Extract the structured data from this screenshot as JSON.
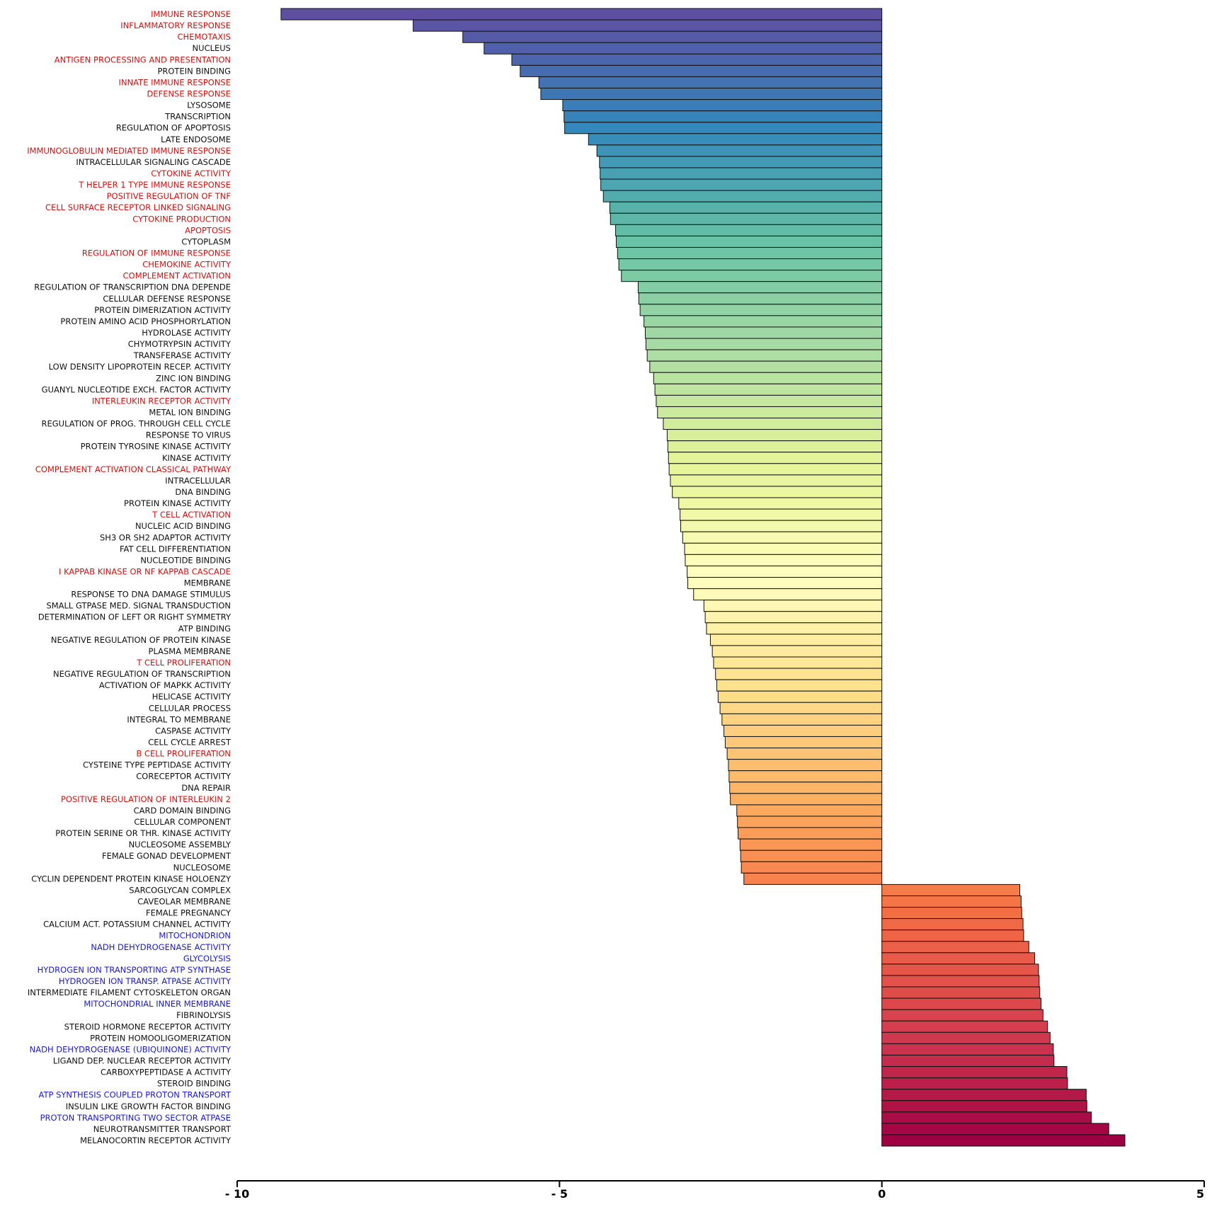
{
  "chart_data": {
    "type": "bar",
    "orientation": "horizontal",
    "title": "",
    "xlabel": "",
    "ylabel": "",
    "xlim": [
      -10,
      5
    ],
    "xticks": [
      {
        "value": -10,
        "label": "- 10"
      },
      {
        "value": -5,
        "label": "- 5"
      },
      {
        "value": 0,
        "label": "0"
      },
      {
        "value": 5,
        "label": "5"
      }
    ],
    "grid": false,
    "legend": "none",
    "label_colors": {
      "default": "#111111",
      "immune": "#cc1111",
      "energy": "#1a1acc"
    },
    "categories": [
      {
        "label": "IMMUNE RESPONSE",
        "value": -9.32,
        "group": "immune"
      },
      {
        "label": "INFLAMMATORY RESPONSE",
        "value": -7.27,
        "group": "immune"
      },
      {
        "label": "CHEMOTAXIS",
        "value": -6.5,
        "group": "immune"
      },
      {
        "label": "NUCLEUS",
        "value": -6.17,
        "group": "default"
      },
      {
        "label": "ANTIGEN PROCESSING AND PRESENTATION",
        "value": -5.74,
        "group": "immune"
      },
      {
        "label": "PROTEIN BINDING",
        "value": -5.61,
        "group": "default"
      },
      {
        "label": "INNATE IMMUNE RESPONSE",
        "value": -5.32,
        "group": "immune"
      },
      {
        "label": "DEFENSE RESPONSE",
        "value": -5.29,
        "group": "immune"
      },
      {
        "label": "LYSOSOME",
        "value": -4.95,
        "group": "default"
      },
      {
        "label": "TRANSCRIPTION",
        "value": -4.93,
        "group": "default"
      },
      {
        "label": "REGULATION OF APOPTOSIS",
        "value": -4.92,
        "group": "default"
      },
      {
        "label": "LATE ENDOSOME",
        "value": -4.55,
        "group": "default"
      },
      {
        "label": "IMMUNOGLOBULIN MEDIATED IMMUNE RESPONSE",
        "value": -4.42,
        "group": "immune"
      },
      {
        "label": "INTRACELLULAR SIGNALING CASCADE",
        "value": -4.38,
        "group": "default"
      },
      {
        "label": "CYTOKINE ACTIVITY",
        "value": -4.37,
        "group": "immune"
      },
      {
        "label": "T HELPER 1 TYPE IMMUNE RESPONSE",
        "value": -4.36,
        "group": "immune"
      },
      {
        "label": "POSITIVE REGULATION OF TNF",
        "value": -4.32,
        "group": "immune"
      },
      {
        "label": "CELL SURFACE RECEPTOR LINKED SIGNALING",
        "value": -4.22,
        "group": "immune"
      },
      {
        "label": "CYTOKINE PRODUCTION",
        "value": -4.21,
        "group": "immune"
      },
      {
        "label": "APOPTOSIS",
        "value": -4.13,
        "group": "immune"
      },
      {
        "label": "CYTOPLASM",
        "value": -4.12,
        "group": "default"
      },
      {
        "label": "REGULATION OF IMMUNE RESPONSE",
        "value": -4.1,
        "group": "immune"
      },
      {
        "label": "CHEMOKINE ACTIVITY",
        "value": -4.08,
        "group": "immune"
      },
      {
        "label": "COMPLEMENT ACTIVATION",
        "value": -4.04,
        "group": "immune"
      },
      {
        "label": "REGULATION OF TRANSCRIPTION DNA DEPENDE",
        "value": -3.78,
        "group": "default"
      },
      {
        "label": "CELLULAR DEFENSE RESPONSE",
        "value": -3.77,
        "group": "default"
      },
      {
        "label": "PROTEIN DIMERIZATION ACTIVITY",
        "value": -3.75,
        "group": "default"
      },
      {
        "label": "PROTEIN AMINO ACID PHOSPHORYLATION",
        "value": -3.69,
        "group": "default"
      },
      {
        "label": "HYDROLASE ACTIVITY",
        "value": -3.67,
        "group": "default"
      },
      {
        "label": "CHYMOTRYPSIN ACTIVITY",
        "value": -3.66,
        "group": "default"
      },
      {
        "label": "TRANSFERASE ACTIVITY",
        "value": -3.64,
        "group": "default"
      },
      {
        "label": "LOW DENSITY LIPOPROTEIN RECEP. ACTIVITY",
        "value": -3.6,
        "group": "default"
      },
      {
        "label": "ZINC ION BINDING",
        "value": -3.54,
        "group": "default"
      },
      {
        "label": "GUANYL NUCLEOTIDE EXCH. FACTOR ACTIVITY",
        "value": -3.52,
        "group": "default"
      },
      {
        "label": "INTERLEUKIN RECEPTOR ACTIVITY",
        "value": -3.5,
        "group": "immune"
      },
      {
        "label": "METAL ION BINDING",
        "value": -3.48,
        "group": "default"
      },
      {
        "label": "REGULATION OF PROG. THROUGH CELL CYCLE",
        "value": -3.39,
        "group": "default"
      },
      {
        "label": "RESPONSE TO VIRUS",
        "value": -3.33,
        "group": "default"
      },
      {
        "label": "PROTEIN TYROSINE KINASE ACTIVITY",
        "value": -3.32,
        "group": "default"
      },
      {
        "label": "KINASE ACTIVITY",
        "value": -3.31,
        "group": "default"
      },
      {
        "label": "COMPLEMENT ACTIVATION CLASSICAL PATHWAY",
        "value": -3.3,
        "group": "immune"
      },
      {
        "label": "INTRACELLULAR",
        "value": -3.28,
        "group": "default"
      },
      {
        "label": "DNA BINDING",
        "value": -3.25,
        "group": "default"
      },
      {
        "label": "PROTEIN KINASE ACTIVITY",
        "value": -3.15,
        "group": "default"
      },
      {
        "label": "T CELL ACTIVATION",
        "value": -3.13,
        "group": "immune"
      },
      {
        "label": "NUCLEIC ACID BINDING",
        "value": -3.12,
        "group": "default"
      },
      {
        "label": "SH3 OR SH2 ADAPTOR ACTIVITY",
        "value": -3.09,
        "group": "default"
      },
      {
        "label": "FAT CELL DIFFERENTIATION",
        "value": -3.06,
        "group": "default"
      },
      {
        "label": "NUCLEOTIDE BINDING",
        "value": -3.05,
        "group": "default"
      },
      {
        "label": "I KAPPAB KINASE OR NF KAPPAB CASCADE",
        "value": -3.02,
        "group": "immune"
      },
      {
        "label": "MEMBRANE",
        "value": -3.01,
        "group": "default"
      },
      {
        "label": "RESPONSE TO DNA DAMAGE STIMULUS",
        "value": -2.92,
        "group": "default"
      },
      {
        "label": "SMALL GTPASE MED. SIGNAL TRANSDUCTION",
        "value": -2.76,
        "group": "default"
      },
      {
        "label": "DETERMINATION OF LEFT OR RIGHT SYMMETRY",
        "value": -2.74,
        "group": "default"
      },
      {
        "label": "ATP BINDING",
        "value": -2.72,
        "group": "default"
      },
      {
        "label": "NEGATIVE REGULATION OF PROTEIN KINASE",
        "value": -2.66,
        "group": "default"
      },
      {
        "label": "PLASMA MEMBRANE",
        "value": -2.63,
        "group": "default"
      },
      {
        "label": "T CELL PROLIFERATION",
        "value": -2.61,
        "group": "immune"
      },
      {
        "label": "NEGATIVE REGULATION OF TRANSCRIPTION",
        "value": -2.58,
        "group": "default"
      },
      {
        "label": "ACTIVATION OF MAPKK ACTIVITY",
        "value": -2.56,
        "group": "default"
      },
      {
        "label": "HELICASE ACTIVITY",
        "value": -2.54,
        "group": "default"
      },
      {
        "label": "CELLULAR PROCESS",
        "value": -2.51,
        "group": "default"
      },
      {
        "label": "INTEGRAL TO MEMBRANE",
        "value": -2.48,
        "group": "default"
      },
      {
        "label": "CASPASE ACTIVITY",
        "value": -2.45,
        "group": "default"
      },
      {
        "label": "CELL CYCLE ARREST",
        "value": -2.43,
        "group": "default"
      },
      {
        "label": "B CELL PROLIFERATION",
        "value": -2.4,
        "group": "immune"
      },
      {
        "label": "CYSTEINE TYPE PEPTIDASE ACTIVITY",
        "value": -2.38,
        "group": "default"
      },
      {
        "label": "CORECEPTOR ACTIVITY",
        "value": -2.37,
        "group": "default"
      },
      {
        "label": "DNA REPAIR",
        "value": -2.36,
        "group": "default"
      },
      {
        "label": "POSITIVE REGULATION OF INTERLEUKIN 2",
        "value": -2.35,
        "group": "immune"
      },
      {
        "label": "CARD DOMAIN BINDING",
        "value": -2.25,
        "group": "default"
      },
      {
        "label": "CELLULAR COMPONENT",
        "value": -2.24,
        "group": "default"
      },
      {
        "label": "PROTEIN SERINE OR THR. KINASE ACTIVITY",
        "value": -2.23,
        "group": "default"
      },
      {
        "label": "NUCLEOSOME ASSEMBLY",
        "value": -2.2,
        "group": "default"
      },
      {
        "label": "FEMALE GONAD DEVELOPMENT",
        "value": -2.19,
        "group": "default"
      },
      {
        "label": "NUCLEOSOME",
        "value": -2.18,
        "group": "default"
      },
      {
        "label": "CYCLIN DEPENDENT PROTEIN KINASE HOLOENZY",
        "value": -2.14,
        "group": "default"
      },
      {
        "label": "SARCOGLYCAN COMPLEX",
        "value": 2.14,
        "group": "default"
      },
      {
        "label": "CAVEOLAR MEMBRANE",
        "value": 2.16,
        "group": "default"
      },
      {
        "label": "FEMALE PREGNANCY",
        "value": 2.17,
        "group": "default"
      },
      {
        "label": "CALCIUM ACT. POTASSIUM CHANNEL ACTIVITY",
        "value": 2.19,
        "group": "default"
      },
      {
        "label": "MITOCHONDRION",
        "value": 2.2,
        "group": "energy"
      },
      {
        "label": "NADH DEHYDROGENASE ACTIVITY",
        "value": 2.28,
        "group": "energy"
      },
      {
        "label": "GLYCOLYSIS",
        "value": 2.37,
        "group": "energy"
      },
      {
        "label": "HYDROGEN ION TRANSPORTING ATP SYNTHASE",
        "value": 2.43,
        "group": "energy"
      },
      {
        "label": "HYDROGEN ION TRANSP. ATPASE ACTIVITY",
        "value": 2.44,
        "group": "energy"
      },
      {
        "label": "INTERMEDIATE FILAMENT CYTOSKELETON ORGAN",
        "value": 2.45,
        "group": "default"
      },
      {
        "label": "MITOCHONDRIAL INNER MEMBRANE",
        "value": 2.47,
        "group": "energy"
      },
      {
        "label": "FIBRINOLYSIS",
        "value": 2.5,
        "group": "default"
      },
      {
        "label": "STEROID HORMONE RECEPTOR ACTIVITY",
        "value": 2.57,
        "group": "default"
      },
      {
        "label": "PROTEIN HOMOOLIGOMERIZATION",
        "value": 2.61,
        "group": "default"
      },
      {
        "label": "NADH DEHYDROGENASE (UBIQUINONE) ACTIVITY",
        "value": 2.66,
        "group": "energy"
      },
      {
        "label": "LIGAND DEP. NUCLEAR RECEPTOR ACTIVITY",
        "value": 2.67,
        "group": "default"
      },
      {
        "label": "CARBOXYPEPTIDASE A ACTIVITY",
        "value": 2.87,
        "group": "default"
      },
      {
        "label": "STEROID BINDING",
        "value": 2.88,
        "group": "default"
      },
      {
        "label": "ATP SYNTHESIS COUPLED PROTON TRANSPORT",
        "value": 3.17,
        "group": "energy"
      },
      {
        "label": "INSULIN LIKE GROWTH FACTOR BINDING",
        "value": 3.18,
        "group": "default"
      },
      {
        "label": "PROTON TRANSPORTING TWO SECTOR ATPASE",
        "value": 3.25,
        "group": "energy"
      },
      {
        "label": "NEUROTRANSMITTER TRANSPORT",
        "value": 3.52,
        "group": "default"
      },
      {
        "label": "MELANOCORTIN RECEPTOR ACTIVITY",
        "value": 3.77,
        "group": "default"
      }
    ]
  }
}
